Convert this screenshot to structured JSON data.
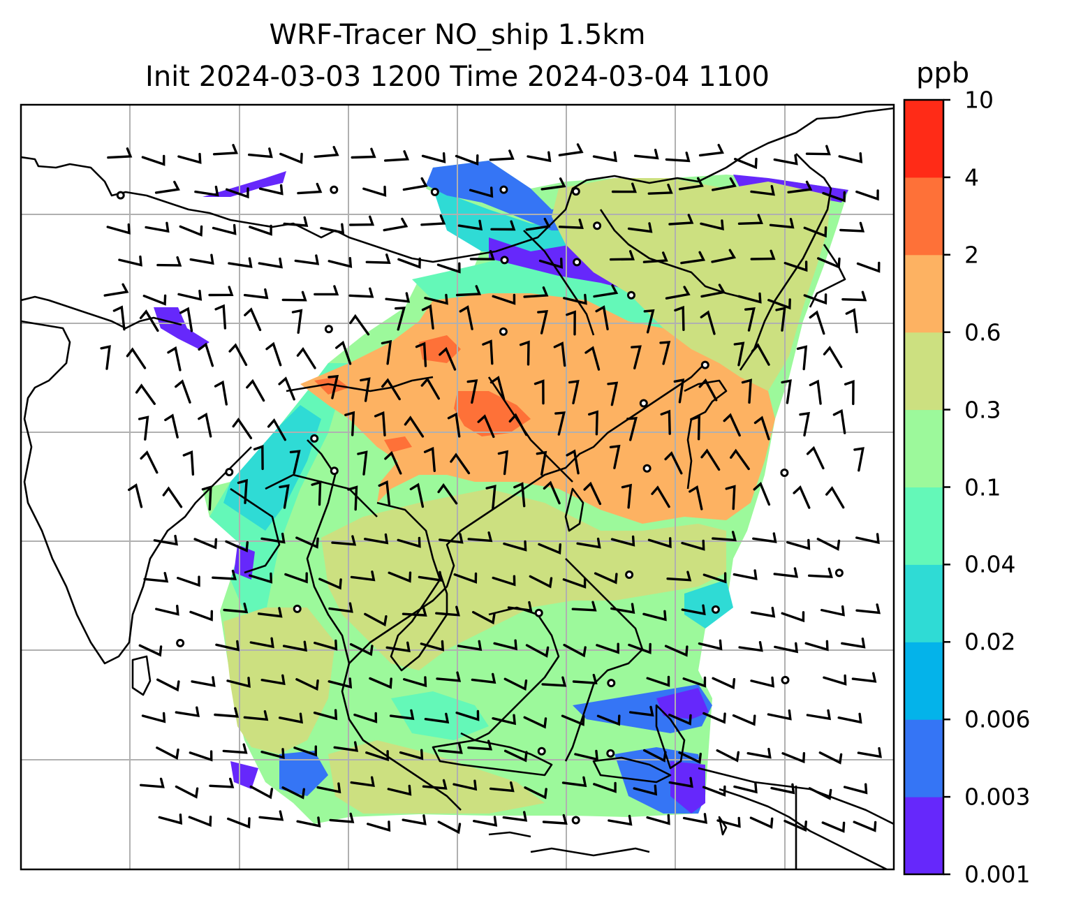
{
  "title": {
    "line1": "WRF-Tracer NO_ship 1.5km",
    "line2": "Init 2024-03-03 1200 Time 2024-03-04 1100"
  },
  "colorbar": {
    "unit": "ppb",
    "levels": [
      "0.001",
      "0.003",
      "0.006",
      "0.02",
      "0.04",
      "0.1",
      "0.3",
      "0.6",
      "2",
      "4",
      "10"
    ],
    "colors": [
      "#6628fb",
      "#3575f5",
      "#04b3ea",
      "#2fdbd5",
      "#64f8b8",
      "#9cf99b",
      "#cce080",
      "#fdb262",
      "#fe7138",
      "#ff2b17"
    ]
  },
  "map": {
    "field": "NO_ship",
    "level": "1.5km",
    "gridlines": true,
    "coastline_color": "#000000",
    "barb_color": "#000000",
    "gridline_color": "#b0b0b0"
  }
}
